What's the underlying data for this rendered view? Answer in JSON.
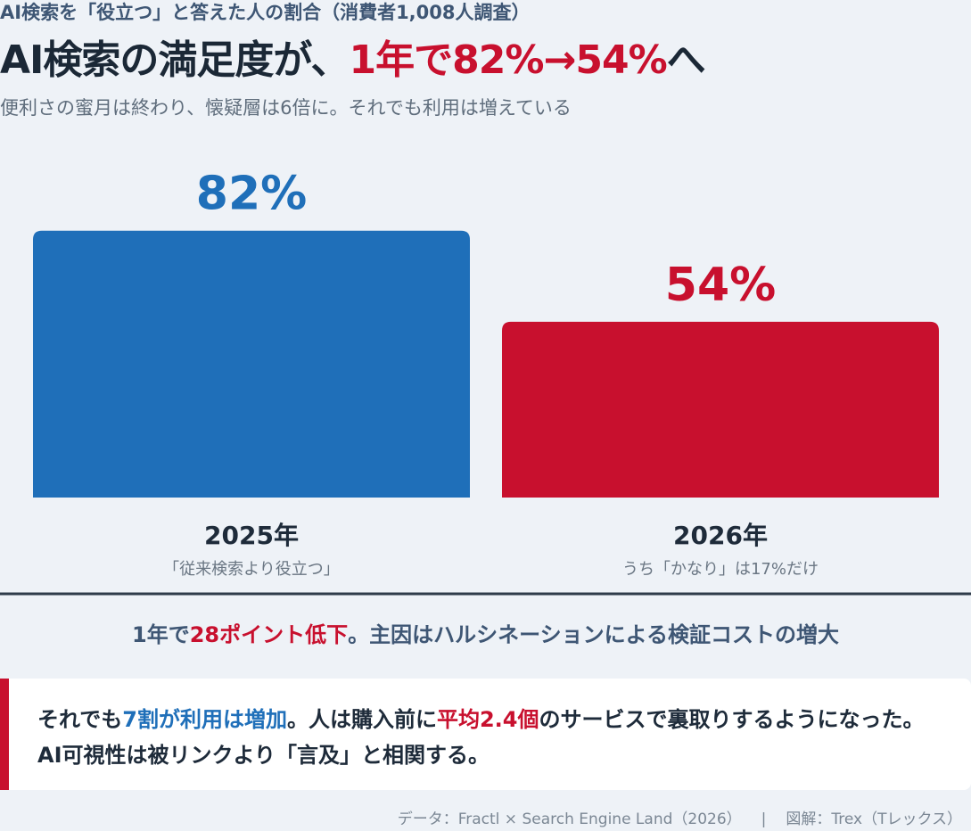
{
  "kicker": "AI検索を「役立つ」と答えた人の割合（消費者1,008人調査）",
  "headline": {
    "lead": "AI検索の満足度が、",
    "highlight": "1年で82%→54%",
    "tail": "へ"
  },
  "subtitle": "便利さの蜜月は終わり、懐疑層は6倍に。それでも利用は増えている",
  "chart_data": {
    "type": "bar",
    "categories": [
      "2025年",
      "2026年"
    ],
    "values": [
      82,
      54
    ],
    "value_labels": [
      "82%",
      "54%"
    ],
    "notes": [
      "「従来検索より役立つ」",
      "うち「かなり」は17%だけ"
    ],
    "colors": [
      "#1f6fb9",
      "#c8102e"
    ],
    "ylim": [
      0,
      100
    ],
    "grid": false,
    "title": "",
    "xlabel": "",
    "ylabel": ""
  },
  "summary": {
    "part1": "1年で",
    "highlight": "28ポイント低下",
    "part2": "。主因はハルシネーションによる検証コストの増大"
  },
  "callout": {
    "part1": "それでも",
    "blue": "7割が利用は増加",
    "part2": "。人は購入前に",
    "red": "平均2.4個",
    "part3": "のサービスで裏取りするようになった。AI可視性は被リンクより「言及」と相関する。"
  },
  "footer": {
    "source": "データ：Fractl × Search Engine Land（2026）",
    "separator": "|",
    "credit": "図解：Trex（Tレックス）"
  }
}
